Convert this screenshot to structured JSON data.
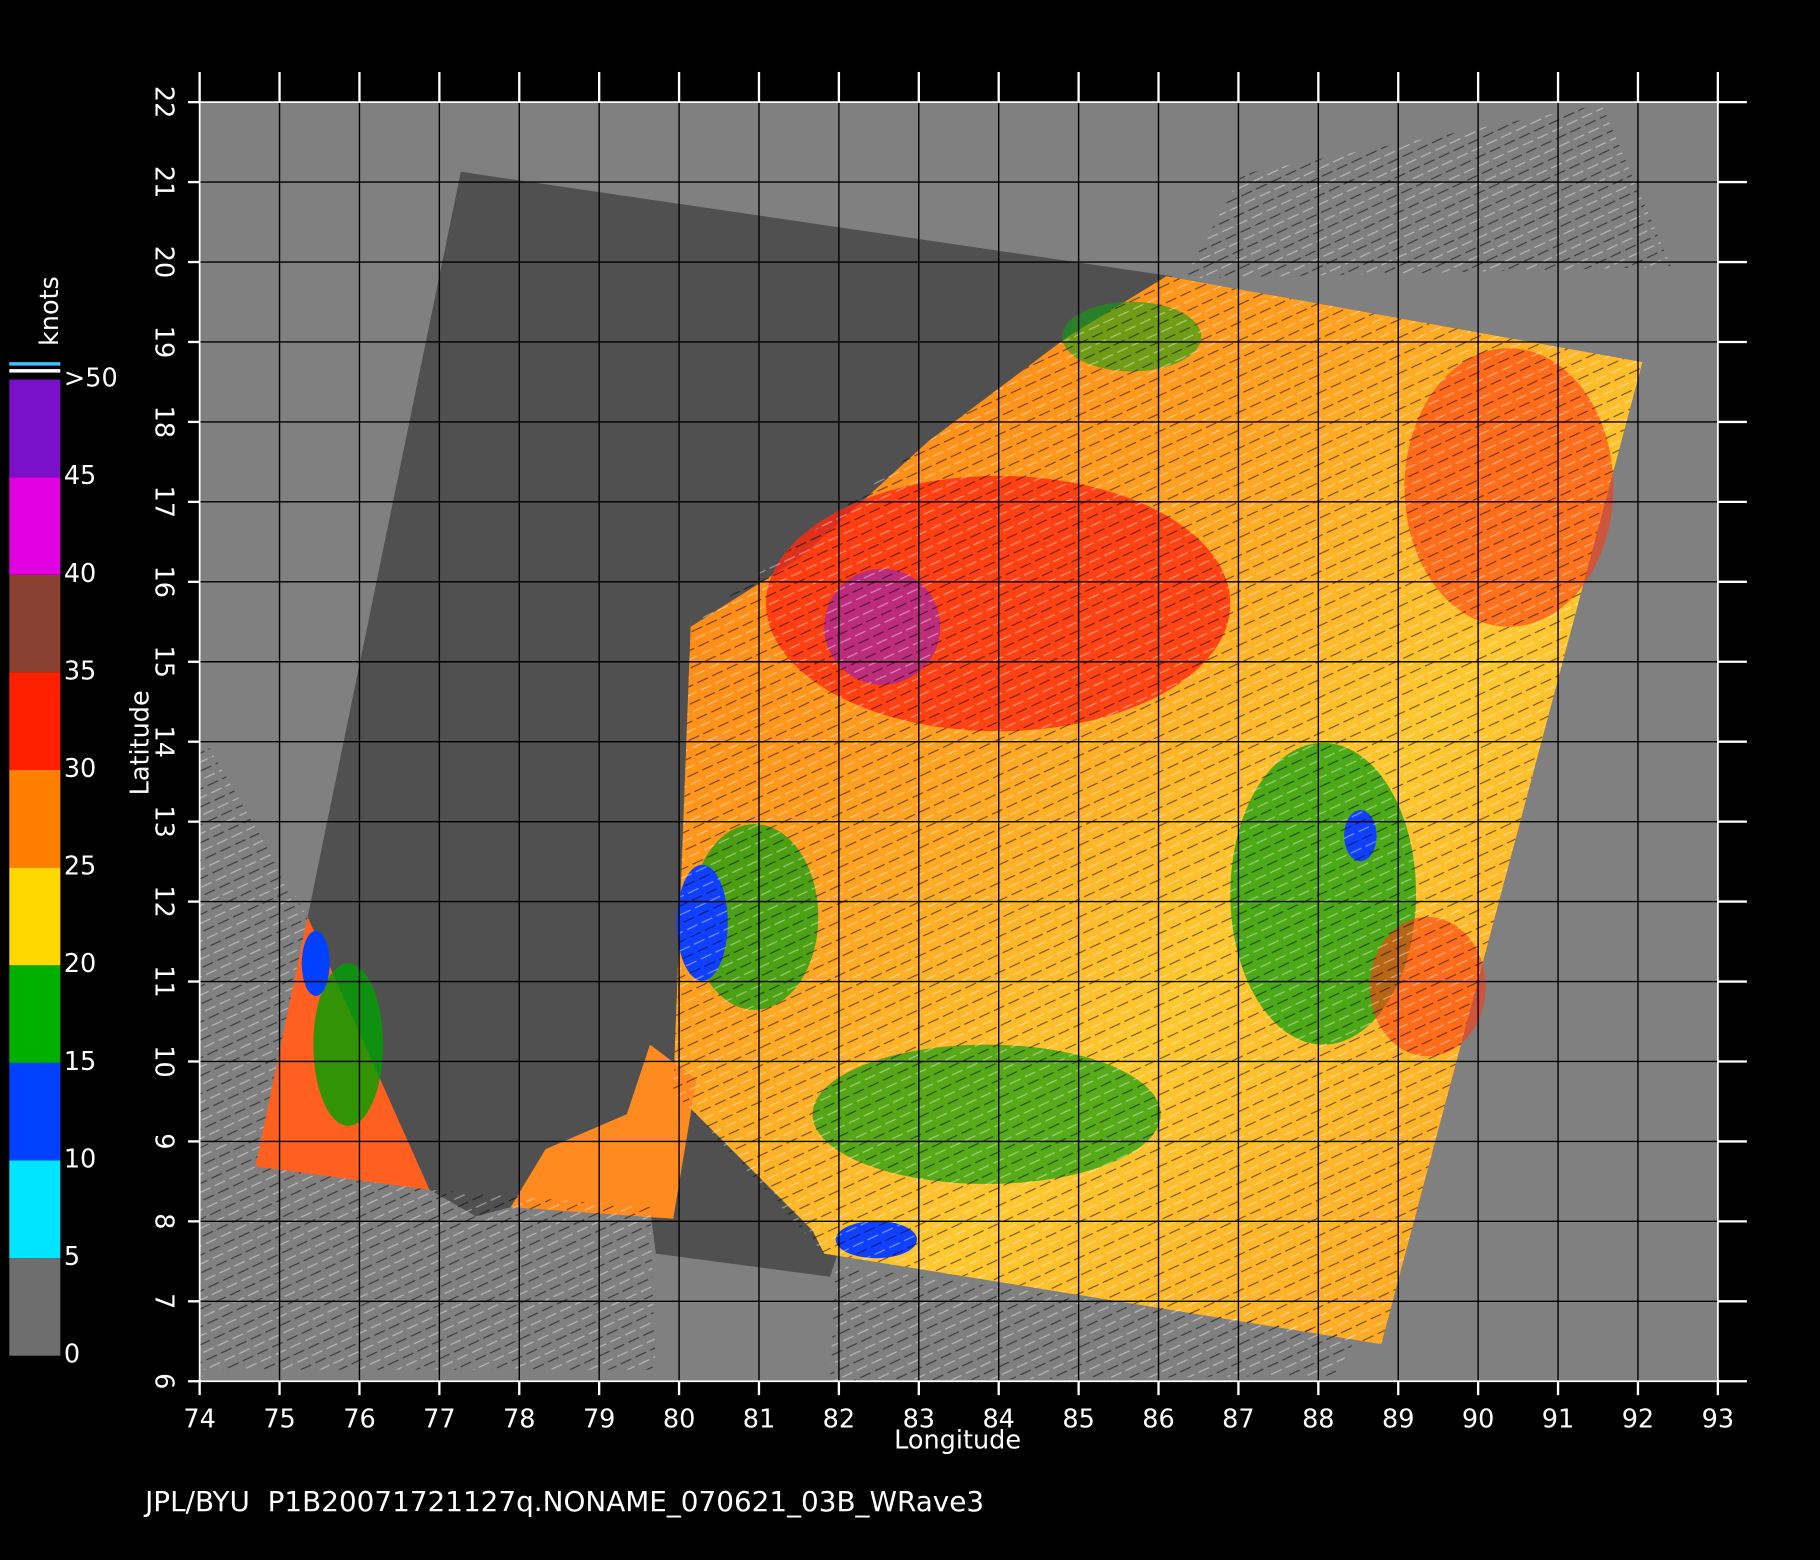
{
  "map": {
    "xlabel": "Longitude",
    "ylabel": "Latitude",
    "xlim": [
      74,
      93
    ],
    "ylim": [
      6,
      22
    ],
    "xticks": [
      74,
      75,
      76,
      77,
      78,
      79,
      80,
      81,
      82,
      83,
      84,
      85,
      86,
      87,
      88,
      89,
      90,
      91,
      92,
      93
    ],
    "yticks": [
      6,
      7,
      8,
      9,
      10,
      11,
      12,
      13,
      14,
      15,
      16,
      17,
      18,
      19,
      20,
      21,
      22
    ]
  },
  "colorbar": {
    "title": "knots",
    "ticks": [
      0,
      5,
      10,
      15,
      20,
      25,
      30,
      35,
      40,
      45,
      {
        "value": 50,
        "label": ">50"
      }
    ],
    "colors": [
      "#6e6e6e",
      "#00e5ff",
      "#0040ff",
      "#00b000",
      "#ffd800",
      "#ff8000",
      "#ff2000",
      "#8a4030",
      "#e000e0",
      "#7a10c8"
    ]
  },
  "footer": "JPL/BYU  P1B20071721127q.NONAME_070621_03B_WRave3"
}
